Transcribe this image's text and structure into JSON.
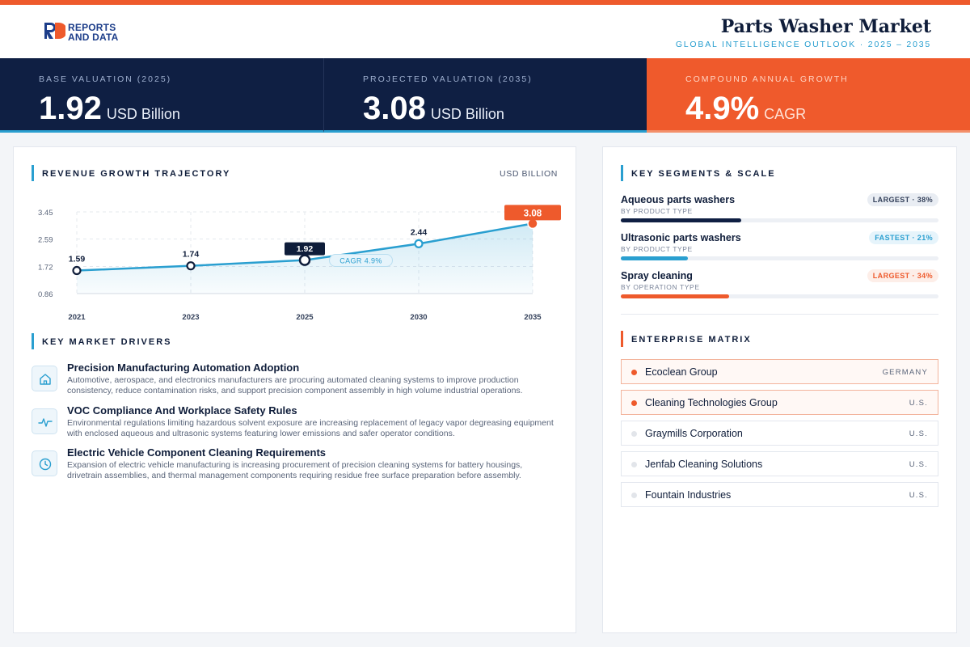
{
  "brand": {
    "logo_mark": "RD",
    "logo_line1": "REPORTS",
    "logo_line2": "AND DATA"
  },
  "header": {
    "title": "Parts Washer Market",
    "subtitle": "GLOBAL INTELLIGENCE OUTLOOK  ·  2025 – 2035"
  },
  "kpis": [
    {
      "label": "BASE VALUATION (2025)",
      "value": "1.92",
      "unit": "USD Billion"
    },
    {
      "label": "PROJECTED VALUATION (2035)",
      "value": "3.08",
      "unit": "USD Billion"
    },
    {
      "label": "COMPOUND ANNUAL GROWTH",
      "value": "4.9%",
      "unit": "CAGR"
    }
  ],
  "revenue": {
    "title": "REVENUE GROWTH TRAJECTORY",
    "unit_label": "USD BILLION"
  },
  "chart_data": {
    "type": "line",
    "x": [
      "2021",
      "2023",
      "2025",
      "2030",
      "2035"
    ],
    "values": [
      1.59,
      1.74,
      1.92,
      2.44,
      3.08
    ],
    "value_labels": [
      "1.59",
      "1.74",
      "1.92",
      "2.44",
      "3.08"
    ],
    "yticks": [
      "3.45",
      "2.59",
      "1.72",
      "0.86"
    ],
    "ytick_values": [
      3.45,
      2.59,
      1.72,
      0.86
    ],
    "ylim": [
      0.86,
      3.45
    ],
    "annotation": "CAGR 4.9%",
    "grid": true,
    "colors": {
      "line": "#2a9fd0",
      "base_marker": "#0f1d3a",
      "end_marker": "#ee5a2c"
    }
  },
  "drivers": {
    "title": "KEY MARKET DRIVERS",
    "items": [
      {
        "icon": "home-icon",
        "title": "Precision Manufacturing Automation Adoption",
        "desc": "Automotive, aerospace, and electronics manufacturers are procuring automated cleaning systems to improve production consistency, reduce contamination risks, and support precision component assembly in high volume industrial operations."
      },
      {
        "icon": "pulse-icon",
        "title": "VOC Compliance And Workplace Safety Rules",
        "desc": "Environmental regulations limiting hazardous solvent exposure are increasing replacement of legacy vapor degreasing equipment with enclosed aqueous and ultrasonic systems featuring lower emissions and safer operator conditions."
      },
      {
        "icon": "clock-icon",
        "title": "Electric Vehicle Component Cleaning Requirements",
        "desc": "Expansion of electric vehicle manufacturing is increasing procurement of precision cleaning systems for battery housings, drivetrain assemblies, and thermal management components requiring residue free surface preparation before assembly."
      }
    ]
  },
  "segments": {
    "title": "KEY SEGMENTS & SCALE",
    "items": [
      {
        "name": "Aqueous parts washers",
        "sub": "BY PRODUCT TYPE",
        "badge": "LARGEST · 38%",
        "share": 38,
        "color": "#0f1f43",
        "badge_bg": "#e9edf3",
        "badge_fg": "#33405a"
      },
      {
        "name": "Ultrasonic parts washers",
        "sub": "BY PRODUCT TYPE",
        "badge": "FASTEST · 21%",
        "share": 21,
        "color": "#2a9fd0",
        "badge_bg": "#e6f4fb",
        "badge_fg": "#2a9fd0"
      },
      {
        "name": "Spray cleaning",
        "sub": "BY OPERATION TYPE",
        "badge": "LARGEST · 34%",
        "share": 34,
        "color": "#ee5a2c",
        "badge_bg": "#fdeee8",
        "badge_fg": "#ee5a2c"
      }
    ]
  },
  "enterprise": {
    "title": "ENTERPRISE MATRIX",
    "items": [
      {
        "name": "Ecoclean Group",
        "country": "GERMANY",
        "highlight": true
      },
      {
        "name": "Cleaning Technologies Group",
        "country": "U.S.",
        "highlight": true
      },
      {
        "name": "Graymills Corporation",
        "country": "U.S.",
        "highlight": false
      },
      {
        "name": "Jenfab Cleaning Solutions",
        "country": "U.S.",
        "highlight": false
      },
      {
        "name": "Fountain Industries",
        "country": "U.S.",
        "highlight": false
      }
    ]
  }
}
